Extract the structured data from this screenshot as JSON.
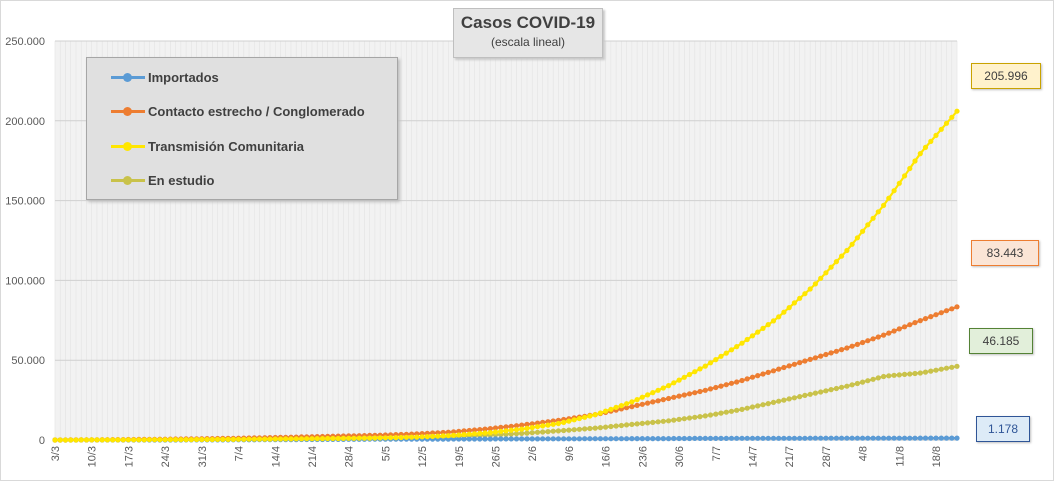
{
  "chart_data": {
    "type": "line",
    "title": "Casos COVID-19",
    "subtitle": "(escala lineal)",
    "ylim": [
      0,
      250000
    ],
    "y_ticks": [
      "0",
      "50.000",
      "100.000",
      "150.000",
      "200.000",
      "250.000"
    ],
    "y_tick_values": [
      0,
      50000,
      100000,
      150000,
      200000,
      250000
    ],
    "x_tick_labels": [
      "3/3",
      "10/3",
      "17/3",
      "24/3",
      "31/3",
      "7/4",
      "14/4",
      "21/4",
      "28/4",
      "5/5",
      "12/5",
      "19/5",
      "26/5",
      "2/6",
      "9/6",
      "16/6",
      "23/6",
      "30/6",
      "7/7",
      "14/7",
      "21/7",
      "28/7",
      "4/8",
      "11/8",
      "18/8"
    ],
    "x_start": "3/3",
    "x_end": "22/8",
    "grid": true,
    "legend_position": "top-left",
    "series": [
      {
        "name": "Importados",
        "color": "#5b9bd5",
        "values": [
          0,
          0,
          0,
          0,
          50,
          100,
          200,
          300,
          400,
          500,
          550,
          600,
          650,
          700,
          750,
          800,
          850,
          900,
          1000,
          1050,
          1080,
          1100,
          1120,
          1140,
          1160,
          1178
        ]
      },
      {
        "name": "Contacto estrecho / Conglomerado",
        "color": "#ed7d31",
        "values": [
          0,
          100,
          300,
          500,
          800,
          1100,
          1500,
          2000,
          2500,
          3000,
          3800,
          5000,
          7000,
          9500,
          12500,
          16000,
          21000,
          26000,
          31000,
          37000,
          44000,
          51000,
          58000,
          66000,
          75000,
          83443
        ]
      },
      {
        "name": "Transmisión Comunitaria",
        "color": "#ffe600",
        "values": [
          0,
          50,
          100,
          200,
          300,
          400,
          600,
          800,
          1000,
          1300,
          1800,
          2800,
          4500,
          7000,
          10500,
          16000,
          24000,
          34000,
          46000,
          60000,
          76000,
          96000,
          120000,
          148000,
          180000,
          205996
        ]
      },
      {
        "name": "En estudio",
        "color": "#c9c24a",
        "values": [
          0,
          50,
          100,
          200,
          300,
          400,
          500,
          700,
          900,
          1200,
          1600,
          2200,
          3000,
          4200,
          5800,
          7500,
          9800,
          12000,
          15000,
          19000,
          24000,
          29000,
          34000,
          40000,
          42000,
          46185
        ]
      }
    ],
    "end_labels": [
      {
        "series": "Transmisión Comunitaria",
        "text": "205.996",
        "bg": "#fff2cc",
        "border": "#c9a300",
        "color": "#404040"
      },
      {
        "series": "Contacto estrecho / Conglomerado",
        "text": "83.443",
        "bg": "#fbe5d6",
        "border": "#ed7d31",
        "color": "#404040"
      },
      {
        "series": "En estudio",
        "text": "46.185",
        "bg": "#e2efda",
        "border": "#548235",
        "color": "#404040"
      },
      {
        "series": "Importados",
        "text": "1.178",
        "bg": "#ddebf7",
        "border": "#2f5597",
        "color": "#2f5597"
      }
    ]
  }
}
